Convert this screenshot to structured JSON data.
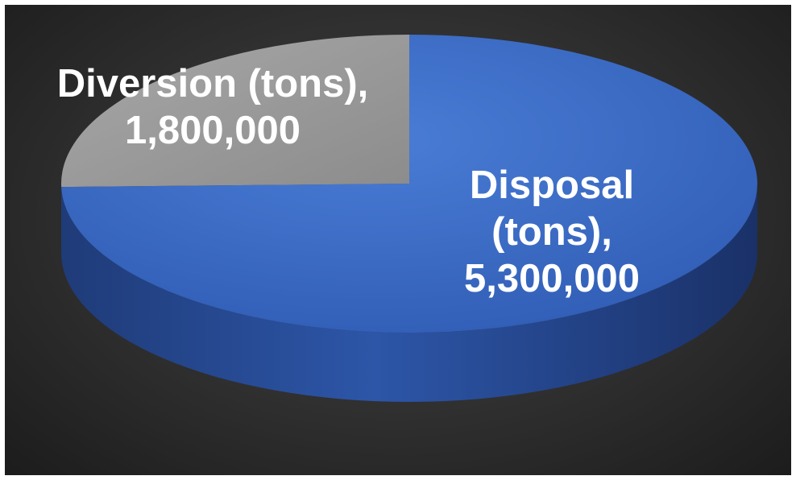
{
  "chart_data": {
    "type": "pie",
    "style": "3d",
    "slices": [
      {
        "category": "Diversion (tons)",
        "value": 1800000,
        "value_label": "1,800,000",
        "color": "#9a9a9a"
      },
      {
        "category": "Disposal (tons)",
        "value": 5300000,
        "value_label": "5,300,000",
        "color": "#3f6fc9"
      }
    ],
    "background_color": "#333333",
    "legend": "none",
    "data_labels": "on-slices"
  }
}
